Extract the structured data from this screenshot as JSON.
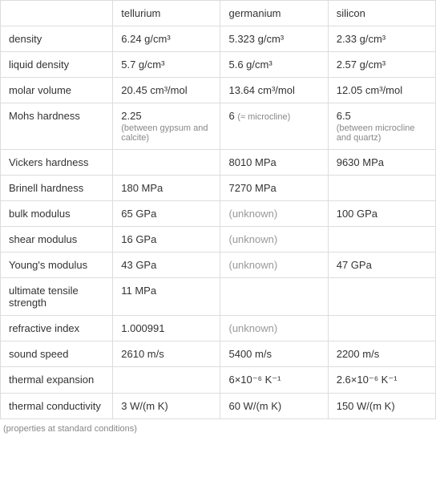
{
  "headers": {
    "property": "",
    "col1": "tellurium",
    "col2": "germanium",
    "col3": "silicon"
  },
  "rows": [
    {
      "prop": "density",
      "c1": "6.24 g/cm³",
      "c2": "5.323 g/cm³",
      "c3": "2.33 g/cm³"
    },
    {
      "prop": "liquid density",
      "c1": "5.7 g/cm³",
      "c2": "5.6 g/cm³",
      "c3": "2.57 g/cm³"
    },
    {
      "prop": "molar volume",
      "c1": "20.45 cm³/mol",
      "c2": "13.64 cm³/mol",
      "c3": "12.05 cm³/mol"
    },
    {
      "prop": "Mohs hardness",
      "c1": "2.25",
      "c1note": "(between gypsum and calcite)",
      "c2": "6",
      "c2inline": "(≈ microcline)",
      "c3": "6.5",
      "c3note": "(between microcline and quartz)"
    },
    {
      "prop": "Vickers hardness",
      "c1": "",
      "c2": "8010 MPa",
      "c3": "9630 MPa"
    },
    {
      "prop": "Brinell hardness",
      "c1": "180 MPa",
      "c2": "7270 MPa",
      "c3": ""
    },
    {
      "prop": "bulk modulus",
      "c1": "65 GPa",
      "c2": "(unknown)",
      "c2unknown": true,
      "c3": "100 GPa"
    },
    {
      "prop": "shear modulus",
      "c1": "16 GPa",
      "c2": "(unknown)",
      "c2unknown": true,
      "c3": ""
    },
    {
      "prop": "Young's modulus",
      "c1": "43 GPa",
      "c2": "(unknown)",
      "c2unknown": true,
      "c3": "47 GPa"
    },
    {
      "prop": "ultimate tensile strength",
      "c1": "11 MPa",
      "c2": "",
      "c3": ""
    },
    {
      "prop": "refractive index",
      "c1": "1.000991",
      "c2": "(unknown)",
      "c2unknown": true,
      "c3": ""
    },
    {
      "prop": "sound speed",
      "c1": "2610 m/s",
      "c2": "5400 m/s",
      "c3": "2200 m/s"
    },
    {
      "prop": "thermal expansion",
      "c1": "",
      "c2": "6×10⁻⁶ K⁻¹",
      "c3": "2.6×10⁻⁶ K⁻¹"
    },
    {
      "prop": "thermal conductivity",
      "c1": "3 W/(m K)",
      "c2": "60 W/(m K)",
      "c3": "150 W/(m K)"
    }
  ],
  "footer": "(properties at standard conditions)"
}
